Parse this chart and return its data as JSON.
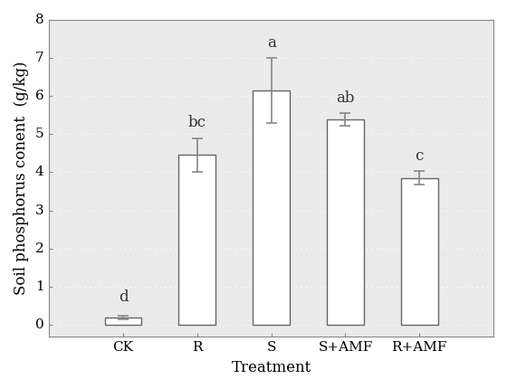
{
  "categories": [
    "CK",
    "R",
    "S",
    "S+AMF",
    "R+AMF"
  ],
  "values": [
    0.18,
    4.45,
    6.15,
    5.38,
    3.85
  ],
  "errors": [
    0.05,
    0.45,
    0.85,
    0.17,
    0.18
  ],
  "labels": [
    "d",
    "bc",
    "a",
    "ab",
    "c"
  ],
  "bar_color": "#ffffff",
  "bar_edgecolor": "#666666",
  "xlabel": "Treatment",
  "ylabel": "Soil phosphorus conent  (g/kg)",
  "ylim": [
    -0.3,
    8
  ],
  "yticks": [
    0,
    1,
    2,
    3,
    4,
    5,
    6,
    7,
    8
  ],
  "background_color": "#ffffff",
  "plot_bg_color": "#ebebeb",
  "label_fontsize": 12,
  "tick_fontsize": 11,
  "annotation_fontsize": 12,
  "bar_width": 0.5,
  "capsize": 4,
  "error_linewidth": 1.2,
  "error_color": "#888888",
  "spine_color": "#888888",
  "grid_color": "#ffffff",
  "dot_grid": true,
  "label_offsets": [
    0.3,
    0.2,
    0.2,
    0.2,
    0.2
  ]
}
